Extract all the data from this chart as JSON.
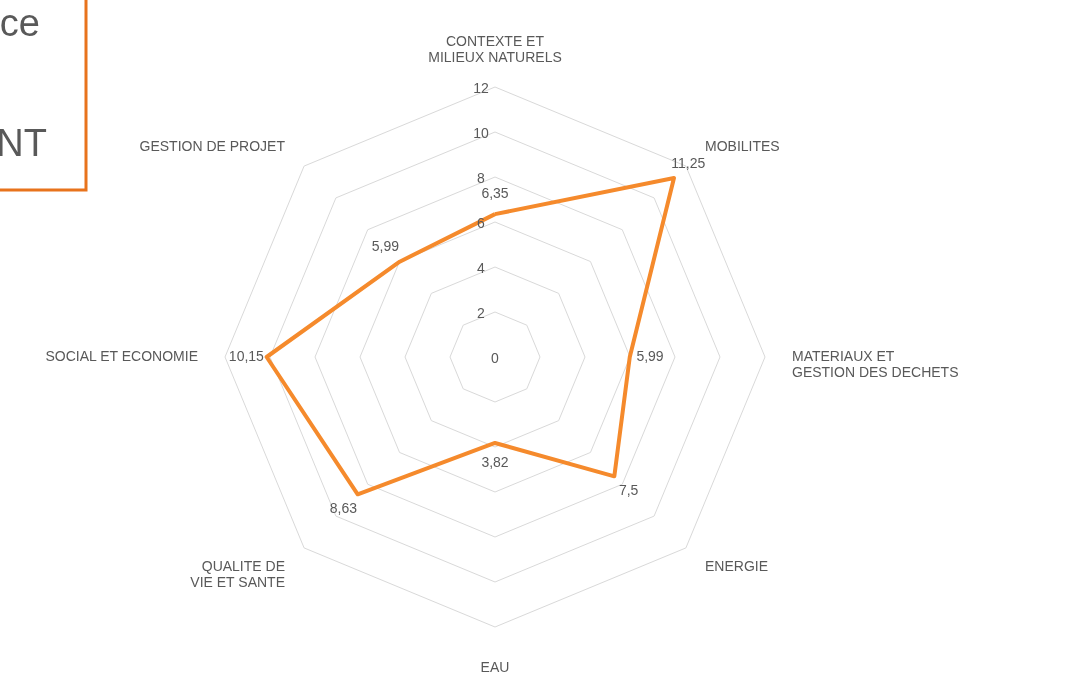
{
  "chart_data": {
    "type": "radar",
    "categories": [
      "CONTEXTE ET MILIEUX NATURELS",
      "MOBILITES",
      "MATERIAUX ET GESTION DES DECHETS",
      "ENERGIE",
      "EAU",
      "QUALITE DE VIE ET SANTE",
      "SOCIAL ET ECONOMIE",
      "GESTION DE PROJET"
    ],
    "series": [
      {
        "color": "#f58a2c",
        "values": [
          6.35,
          11.25,
          5.99,
          7.5,
          3.82,
          8.63,
          10.15,
          5.99
        ],
        "value_labels": [
          "6,35",
          "11,25",
          "5,99",
          "7,5",
          "3,82",
          "8,63",
          "10,15",
          "5,99"
        ]
      }
    ],
    "ylim": [
      0,
      12
    ],
    "yticks": [
      0,
      2,
      4,
      6,
      8,
      10,
      12
    ],
    "grid": true,
    "annotations": [
      "ce",
      "NT"
    ]
  }
}
